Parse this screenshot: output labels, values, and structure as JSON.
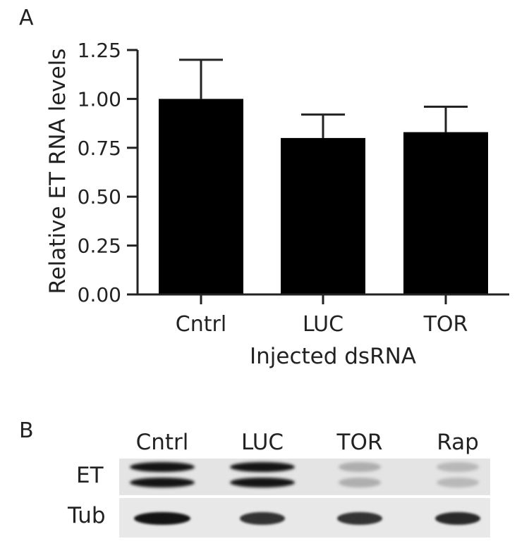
{
  "panels": {
    "a": "A",
    "b": "B"
  },
  "chart_data": {
    "type": "bar",
    "categories": [
      "Cntrl",
      "LUC",
      "TOR"
    ],
    "values": [
      1.0,
      0.8,
      0.83
    ],
    "errors": [
      0.2,
      0.12,
      0.13
    ],
    "xlabel": "Injected dsRNA",
    "ylabel": "Relative ET RNA levels",
    "ylim": [
      0,
      1.25
    ],
    "yticks": [
      "0.00",
      "0.25",
      "0.50",
      "0.75",
      "1.00",
      "1.25"
    ],
    "bar_color": "#000000",
    "grid": false
  },
  "blot": {
    "lanes": [
      "Cntrl",
      "LUC",
      "TOR",
      "Rap"
    ],
    "rows": [
      {
        "label": "ET",
        "intensity": [
          1.0,
          1.0,
          0.25,
          0.2
        ]
      },
      {
        "label": "Tub",
        "intensity": [
          1.0,
          0.85,
          0.85,
          0.9
        ]
      }
    ]
  }
}
